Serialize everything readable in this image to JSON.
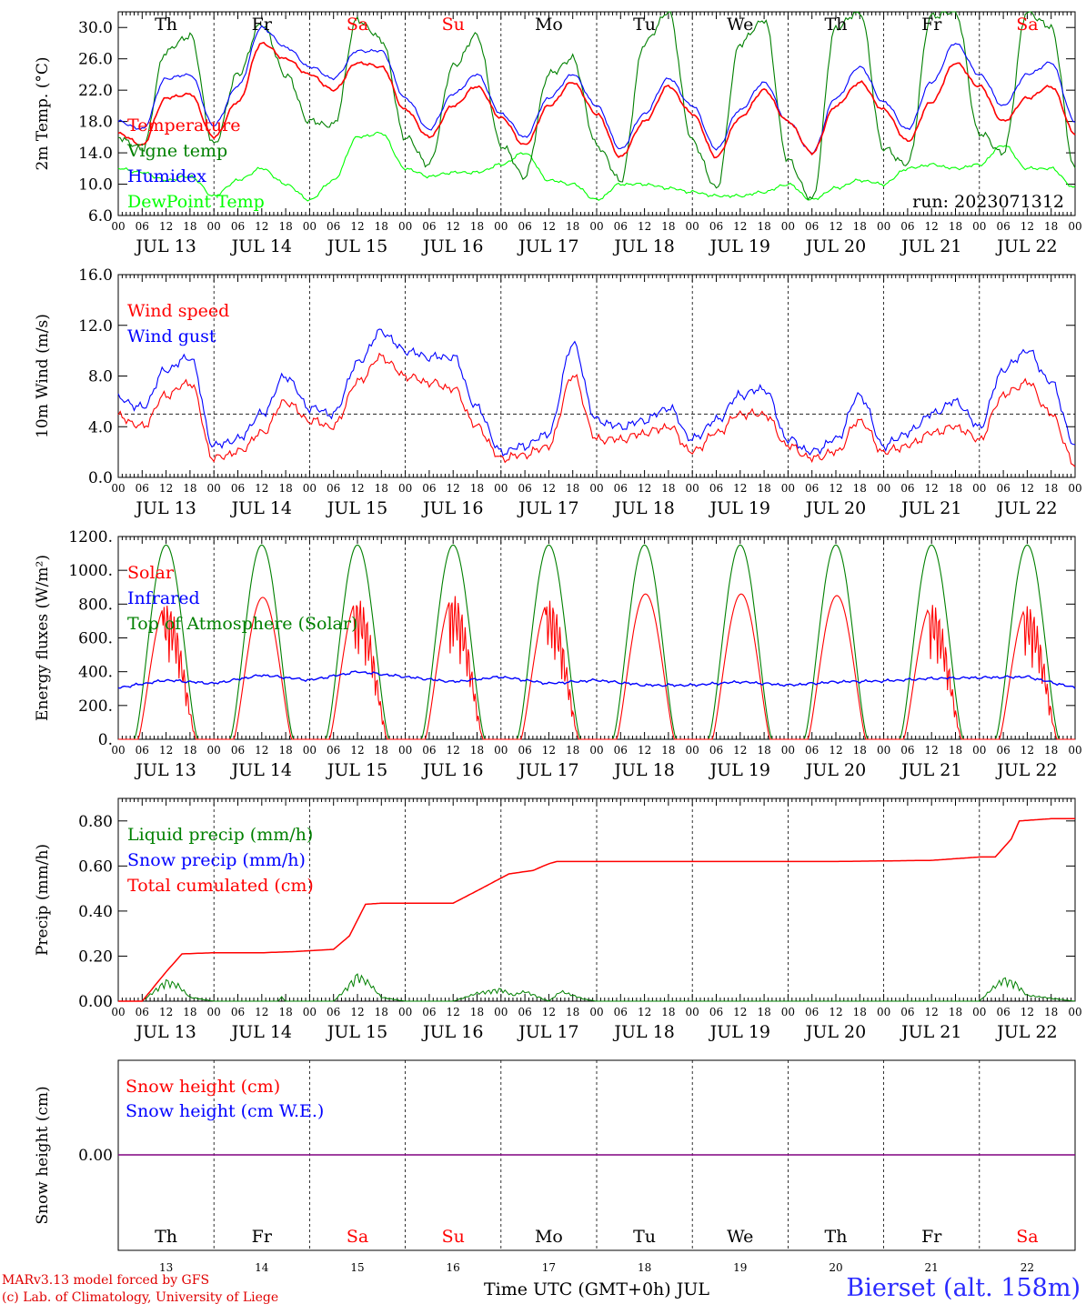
{
  "run_label": "run: 2023071312",
  "colors": {
    "red": "#ff0000",
    "dark_green": "#008000",
    "blue": "#0000ff",
    "light_green": "#00ff00",
    "purple": "#800080"
  },
  "time_axis": {
    "hour_ticks": [
      "00",
      "06",
      "12",
      "18"
    ],
    "end_tick": "00",
    "dates": [
      "JUL 13",
      "JUL 14",
      "JUL 15",
      "JUL 16",
      "JUL 17",
      "JUL 18",
      "JUL 19",
      "JUL 20",
      "JUL 21",
      "JUL 22"
    ],
    "weekdays": [
      "Th",
      "Fr",
      "Sa",
      "Su",
      "Mo",
      "Tu",
      "We",
      "Th",
      "Fr",
      "Sa"
    ],
    "weekend_flags": [
      false,
      false,
      true,
      true,
      false,
      false,
      false,
      false,
      false,
      true
    ],
    "day_numbers": [
      "13",
      "14",
      "15",
      "16",
      "17",
      "18",
      "19",
      "20",
      "21",
      "22"
    ],
    "xlabel": "Time UTC (GMT+0h) JUL"
  },
  "chart_data": [
    {
      "type": "line",
      "ylabel": "2m Temp. (°C)",
      "ylim": [
        6.0,
        32.0
      ],
      "yticks": [
        "6.0",
        "10.0",
        "14.0",
        "18.0",
        "22.0",
        "26.0",
        "30.0"
      ],
      "legend": [
        "Temperature",
        "Vigne temp",
        "Humidex",
        "DewPoint Temp"
      ],
      "x_unit": "hours since 2023-07-13 00 UTC",
      "series": [
        {
          "name": "Temperature",
          "color": "red",
          "x": [
            0,
            6,
            12,
            18,
            24,
            30,
            36,
            42,
            48,
            54,
            60,
            66,
            72,
            78,
            84,
            90,
            96,
            102,
            108,
            114,
            120,
            126,
            132,
            138,
            144,
            150,
            156,
            162,
            168,
            174,
            180,
            186,
            192,
            198,
            204,
            210,
            216,
            222,
            228,
            234,
            240
          ],
          "values": [
            16.5,
            15.0,
            21.0,
            21.5,
            16.0,
            20.5,
            28.0,
            26.0,
            24.0,
            22.0,
            25.5,
            25.0,
            19.5,
            16.0,
            20.0,
            22.5,
            18.5,
            15.0,
            20.0,
            23.0,
            19.0,
            13.5,
            18.0,
            22.5,
            19.0,
            13.5,
            18.5,
            22.0,
            18.0,
            14.0,
            20.0,
            23.0,
            19.5,
            15.5,
            20.5,
            25.5,
            22.5,
            18.0,
            21.0,
            22.5,
            16.5
          ]
        },
        {
          "name": "Vigne temp",
          "color": "dark_green",
          "x": [
            0,
            6,
            12,
            18,
            24,
            30,
            36,
            42,
            48,
            54,
            60,
            66,
            72,
            78,
            84,
            90,
            96,
            102,
            108,
            114,
            120,
            126,
            132,
            138,
            144,
            150,
            156,
            162,
            168,
            174,
            180,
            186,
            192,
            198,
            204,
            210,
            216,
            222,
            228,
            234,
            240
          ],
          "values": [
            16.0,
            14.5,
            27.0,
            29.0,
            15.0,
            24.0,
            30.5,
            24.0,
            18.0,
            17.5,
            31.0,
            28.5,
            16.0,
            12.5,
            25.0,
            29.0,
            15.0,
            11.0,
            24.0,
            26.0,
            15.0,
            10.5,
            28.0,
            32.0,
            15.5,
            9.5,
            28.0,
            31.0,
            13.0,
            8.0,
            30.0,
            32.0,
            14.5,
            12.5,
            31.5,
            32.0,
            16.5,
            14.0,
            32.0,
            30.0,
            12.0
          ]
        },
        {
          "name": "Humidex",
          "color": "blue",
          "x": [
            0,
            6,
            12,
            18,
            24,
            30,
            36,
            42,
            48,
            54,
            60,
            66,
            72,
            78,
            84,
            90,
            96,
            102,
            108,
            114,
            120,
            126,
            132,
            138,
            144,
            150,
            156,
            162,
            168,
            174,
            180,
            186,
            192,
            198,
            204,
            210,
            216,
            222,
            228,
            234,
            240
          ],
          "values": [
            18.0,
            17.0,
            23.5,
            24.0,
            17.5,
            22.5,
            30.0,
            27.5,
            25.0,
            23.5,
            27.0,
            27.0,
            21.0,
            17.0,
            21.5,
            24.0,
            19.0,
            16.0,
            21.0,
            24.0,
            20.0,
            14.5,
            19.0,
            23.5,
            20.0,
            14.5,
            19.5,
            23.0,
            18.0,
            14.0,
            21.0,
            25.0,
            20.5,
            17.0,
            23.0,
            28.0,
            24.0,
            20.0,
            24.0,
            25.5,
            18.0
          ]
        },
        {
          "name": "DewPoint Temp",
          "color": "light_green",
          "x": [
            0,
            6,
            12,
            18,
            24,
            30,
            36,
            42,
            48,
            54,
            60,
            66,
            72,
            78,
            84,
            90,
            96,
            102,
            108,
            114,
            120,
            126,
            132,
            138,
            144,
            150,
            156,
            162,
            168,
            174,
            180,
            186,
            192,
            198,
            204,
            210,
            216,
            222,
            228,
            234,
            240
          ],
          "values": [
            12.0,
            11.5,
            10.5,
            11.0,
            8.5,
            10.5,
            12.0,
            10.0,
            8.0,
            10.5,
            16.0,
            16.5,
            12.0,
            11.0,
            11.5,
            11.5,
            12.5,
            14.0,
            10.5,
            10.0,
            8.0,
            10.0,
            10.0,
            9.5,
            9.0,
            8.5,
            8.5,
            9.0,
            10.0,
            8.0,
            9.5,
            10.5,
            10.0,
            12.0,
            12.5,
            12.0,
            12.5,
            15.0,
            12.0,
            12.0,
            9.5
          ]
        }
      ]
    },
    {
      "type": "line",
      "ylabel": "10m Wind (m/s)",
      "ylim": [
        0.0,
        16.0
      ],
      "yticks": [
        "0.0",
        "4.0",
        "8.0",
        "12.0",
        "16.0"
      ],
      "reference_line": 5.0,
      "legend": [
        "Wind speed",
        "Wind gust"
      ],
      "x_unit": "hours since 2023-07-13 00 UTC",
      "series": [
        {
          "name": "Wind speed",
          "color": "red",
          "x": [
            0,
            6,
            12,
            18,
            24,
            30,
            36,
            42,
            48,
            54,
            60,
            66,
            72,
            78,
            84,
            90,
            96,
            102,
            108,
            114,
            120,
            126,
            132,
            138,
            144,
            150,
            156,
            162,
            168,
            174,
            180,
            186,
            192,
            198,
            204,
            210,
            216,
            222,
            228,
            234,
            240
          ],
          "values": [
            4.8,
            4.0,
            6.5,
            7.5,
            1.5,
            2.0,
            3.5,
            6.0,
            4.5,
            4.0,
            7.5,
            9.5,
            8.0,
            7.5,
            7.0,
            4.0,
            1.5,
            1.8,
            2.5,
            8.0,
            3.0,
            3.0,
            3.5,
            4.0,
            2.0,
            3.5,
            5.0,
            5.0,
            2.5,
            1.5,
            2.0,
            4.5,
            2.0,
            2.5,
            3.5,
            4.0,
            3.0,
            6.5,
            7.5,
            5.0,
            1.0
          ]
        },
        {
          "name": "Wind gust",
          "color": "blue",
          "x": [
            0,
            6,
            12,
            18,
            24,
            30,
            36,
            42,
            48,
            54,
            60,
            66,
            72,
            78,
            84,
            90,
            96,
            102,
            108,
            114,
            120,
            126,
            132,
            138,
            144,
            150,
            156,
            162,
            168,
            174,
            180,
            186,
            192,
            198,
            204,
            210,
            216,
            222,
            228,
            234,
            240
          ],
          "values": [
            6.2,
            5.5,
            8.5,
            9.5,
            2.5,
            3.0,
            5.0,
            8.0,
            5.5,
            5.0,
            9.0,
            11.5,
            10.0,
            9.5,
            9.5,
            5.5,
            2.0,
            2.5,
            3.5,
            10.5,
            4.5,
            4.0,
            4.5,
            5.5,
            3.0,
            4.5,
            6.5,
            7.0,
            3.0,
            2.0,
            3.0,
            6.5,
            2.5,
            3.5,
            5.0,
            6.0,
            4.0,
            8.5,
            10.0,
            7.5,
            2.5
          ]
        }
      ]
    },
    {
      "type": "line",
      "ylabel": "Energy fluxes (W/m²)",
      "ylim": [
        0,
        1200
      ],
      "yticks": [
        "0.",
        "200.",
        "400.",
        "600.",
        "800.",
        "1000.",
        "1200."
      ],
      "legend": [
        "Solar",
        "Infrared",
        "Top of Atmosphere (Solar)"
      ],
      "x_unit": "hours since 2023-07-13 00 UTC",
      "series": [
        {
          "name": "Solar",
          "color": "red",
          "peaks": [
            800,
            840,
            830,
            850,
            820,
            860,
            860,
            850,
            800,
            790
          ]
        },
        {
          "name": "Infrared",
          "color": "blue",
          "x": [
            0,
            12,
            24,
            36,
            48,
            60,
            72,
            84,
            96,
            108,
            120,
            132,
            144,
            156,
            168,
            180,
            192,
            204,
            216,
            228,
            240
          ],
          "values": [
            305,
            350,
            330,
            380,
            350,
            400,
            370,
            340,
            370,
            330,
            350,
            320,
            320,
            340,
            320,
            340,
            345,
            360,
            365,
            370,
            305
          ]
        },
        {
          "name": "Top of Atmosphere (Solar)",
          "color": "dark_green",
          "peak": 1150
        }
      ]
    },
    {
      "type": "line",
      "ylabel": "Precip (mm/h)",
      "ylim": [
        0.0,
        0.9
      ],
      "yticks": [
        "0.00",
        "0.20",
        "0.40",
        "0.60",
        "0.80"
      ],
      "legend": [
        "Liquid precip (mm/h)",
        "Snow precip (mm/h)",
        "Total cumulated (cm)"
      ],
      "x_unit": "hours since 2023-07-13 00 UTC",
      "series": [
        {
          "name": "Total cumulated (cm)",
          "color": "red",
          "x": [
            0,
            6,
            12,
            16,
            24,
            36,
            44,
            54,
            58,
            62,
            66,
            72,
            84,
            90,
            98,
            104,
            108,
            110,
            120,
            144,
            180,
            204,
            216,
            220,
            224,
            226,
            234,
            240
          ],
          "values": [
            0,
            0,
            0.13,
            0.21,
            0.215,
            0.215,
            0.22,
            0.23,
            0.29,
            0.43,
            0.435,
            0.435,
            0.435,
            0.49,
            0.565,
            0.58,
            0.61,
            0.62,
            0.62,
            0.62,
            0.62,
            0.625,
            0.64,
            0.64,
            0.72,
            0.8,
            0.81,
            0.81
          ]
        },
        {
          "name": "Liquid precip (mm/h)",
          "color": "dark_green",
          "x": [
            0,
            6,
            9,
            12,
            15,
            18,
            24,
            40,
            41,
            42,
            54,
            57,
            60,
            63,
            66,
            72,
            84,
            90,
            96,
            99,
            102,
            108,
            111,
            114,
            117,
            120,
            195,
            216,
            219,
            222,
            225,
            228,
            240
          ],
          "values": [
            0,
            0,
            0.05,
            0.1,
            0.08,
            0.02,
            0,
            0,
            0.02,
            0,
            0,
            0.06,
            0.13,
            0.09,
            0.02,
            0,
            0,
            0.04,
            0.06,
            0.03,
            0.05,
            0,
            0.05,
            0.03,
            0.01,
            0,
            0,
            0,
            0.06,
            0.11,
            0.09,
            0.03,
            0
          ]
        },
        {
          "name": "Snow precip (mm/h)",
          "color": "blue",
          "x": [],
          "values": []
        }
      ]
    },
    {
      "type": "line",
      "ylabel": "Snow height (cm)",
      "yticks": [
        "0.00"
      ],
      "legend": [
        "Snow height (cm)",
        "Snow height (cm W.E.)"
      ],
      "series": [
        {
          "name": "Snow height (cm)",
          "color": "red",
          "x": [
            0,
            240
          ],
          "values": [
            0,
            0
          ]
        },
        {
          "name": "Snow height (cm W.E.)",
          "color": "blue",
          "x": [
            0,
            240
          ],
          "values": [
            0,
            0
          ]
        }
      ]
    }
  ],
  "footer": {
    "credit_line1": "MARv3.13 model forced by GFS",
    "credit_line2": "(c) Lab. of Climatology, University of Liege",
    "station": "Bierset (alt. 158m)"
  }
}
